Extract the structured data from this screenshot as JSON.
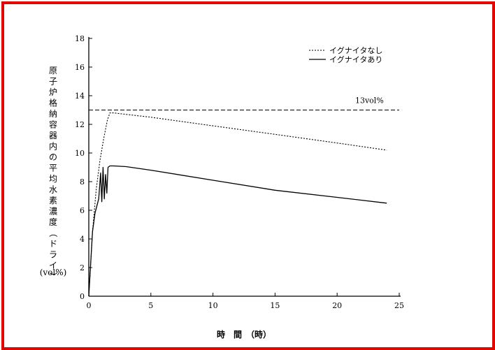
{
  "chart_data": {
    "type": "line",
    "xlabel": "時　間　（時）",
    "ylabel": "原子炉格納容器内の平均水素濃度（ドライ）",
    "yunit": "(vol%)",
    "xlim": [
      0,
      25
    ],
    "ylim": [
      0,
      18
    ],
    "xticks": [
      0,
      5,
      10,
      15,
      20,
      25
    ],
    "yticks": [
      0,
      2,
      4,
      6,
      8,
      10,
      12,
      14,
      16,
      18
    ],
    "legend_position": "top-right",
    "threshold": {
      "value": 13,
      "label": "13vol%"
    },
    "series": [
      {
        "name": "イグナイタなし",
        "style": "dotted",
        "x": [
          0,
          0.3,
          0.6,
          0.9,
          1.2,
          1.5,
          1.7,
          2,
          3,
          5,
          10,
          15,
          20,
          24
        ],
        "y": [
          0,
          4.5,
          7.5,
          9.5,
          11,
          12.3,
          12.8,
          12.8,
          12.7,
          12.5,
          11.9,
          11.3,
          10.7,
          10.2
        ]
      },
      {
        "name": "イグナイタあり",
        "style": "solid",
        "x": [
          0,
          0.3,
          0.5,
          0.8,
          0.95,
          1.05,
          1.15,
          1.25,
          1.35,
          1.45,
          1.55,
          1.7,
          2,
          3,
          5,
          10,
          15,
          20,
          24
        ],
        "y": [
          0,
          4.5,
          5.8,
          6.8,
          8.6,
          6.6,
          9.0,
          6.8,
          8.5,
          7.2,
          9.0,
          9.1,
          9.1,
          9.05,
          8.8,
          8.1,
          7.4,
          6.9,
          6.5
        ]
      }
    ]
  }
}
